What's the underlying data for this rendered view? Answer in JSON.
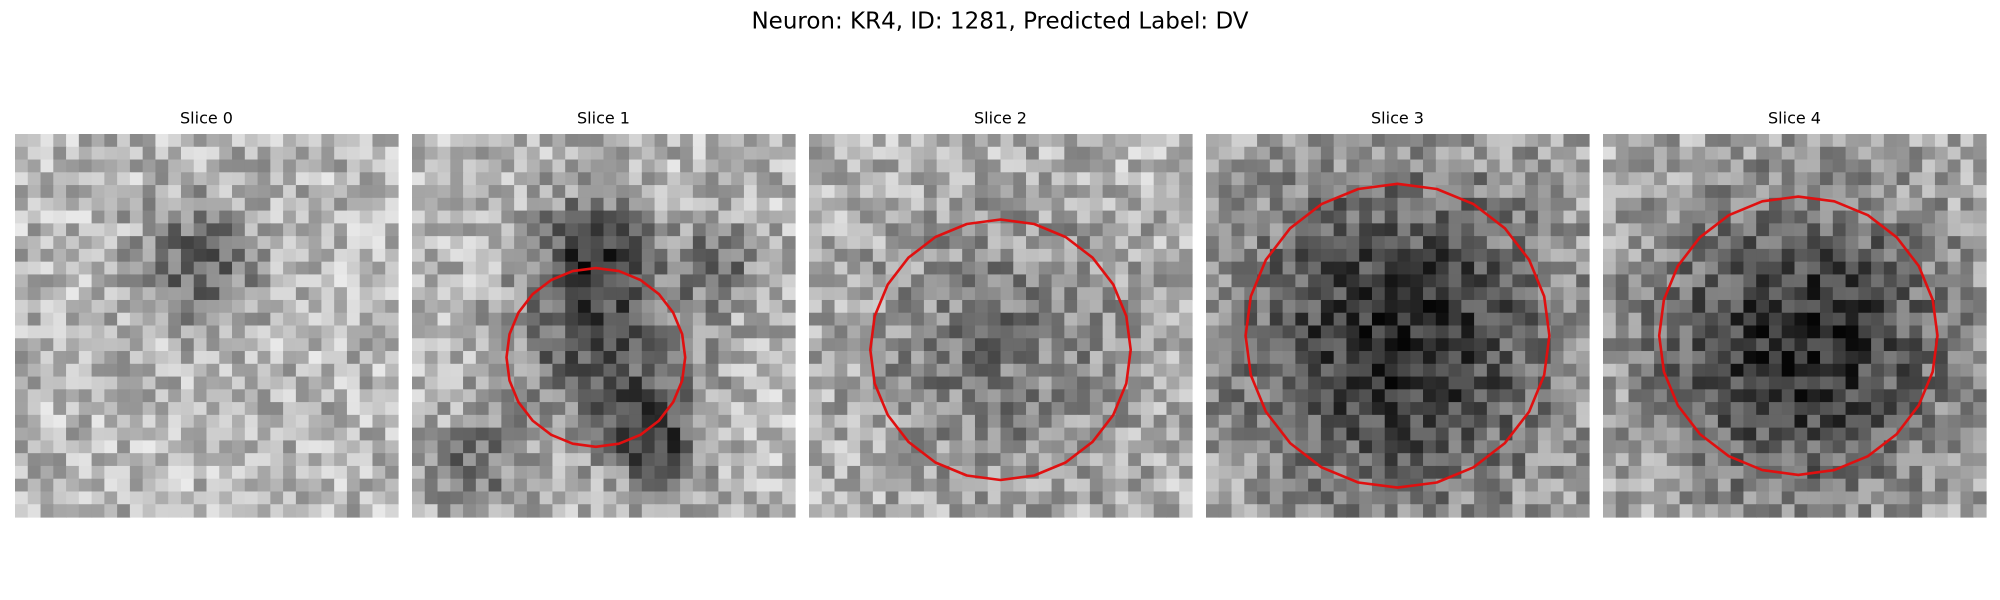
{
  "header": {
    "title": "Neuron: KR4, ID: 1281, Predicted Label: DV"
  },
  "panels": [
    {
      "title": "Slice 0"
    },
    {
      "title": "Slice 1"
    },
    {
      "title": "Slice 2"
    },
    {
      "title": "Slice 3"
    },
    {
      "title": "Slice 4"
    }
  ]
}
